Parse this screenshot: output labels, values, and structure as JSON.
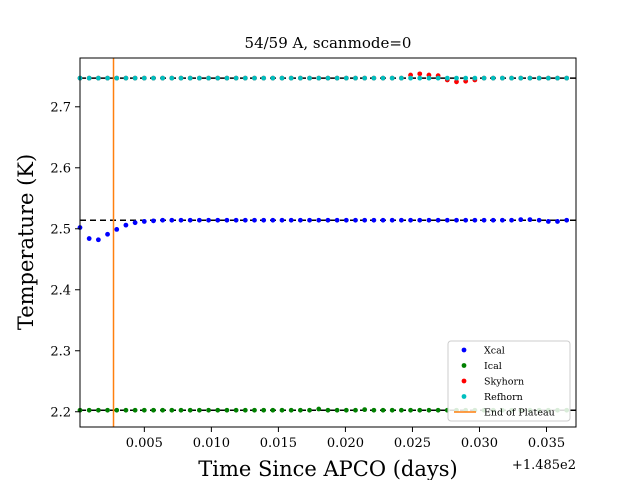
{
  "chart_data": {
    "type": "scatter",
    "title": "54/59 A, scanmode=0",
    "xlabel": "Time Since APCO (days)",
    "ylabel": "Temperature (K)",
    "x_offset_label": "+1.485e2",
    "xlim": [
      0.0002,
      0.0372
    ],
    "ylim": [
      2.175,
      2.78
    ],
    "xticks": [
      {
        "value": 0.005,
        "label": "0.005"
      },
      {
        "value": 0.01,
        "label": "0.010"
      },
      {
        "value": 0.015,
        "label": "0.015"
      },
      {
        "value": 0.02,
        "label": "0.020"
      },
      {
        "value": 0.025,
        "label": "0.025"
      },
      {
        "value": 0.03,
        "label": "0.030"
      },
      {
        "value": 0.035,
        "label": "0.035"
      }
    ],
    "yticks": [
      {
        "value": 2.2,
        "label": "2.2"
      },
      {
        "value": 2.3,
        "label": "2.3"
      },
      {
        "value": 2.4,
        "label": "2.4"
      },
      {
        "value": 2.5,
        "label": "2.5"
      },
      {
        "value": 2.6,
        "label": "2.6"
      },
      {
        "value": 2.7,
        "label": "2.7"
      }
    ],
    "x_start": 0.0002,
    "x_step": 0.000685,
    "n_points": 54,
    "series": [
      {
        "name": "Xcal",
        "color": "#0000ff",
        "base": 2.514,
        "deviations": {
          "0": -0.012,
          "1": -0.03,
          "2": -0.032,
          "3": -0.023,
          "4": -0.015,
          "5": -0.008,
          "6": -0.004,
          "7": -0.002,
          "8": -0.001,
          "48": 0.001,
          "49": 0.001,
          "50": 0.0,
          "51": -0.002,
          "52": -0.002
        }
      },
      {
        "name": "Ical",
        "color": "#008000",
        "base": 2.2025,
        "deviations": {
          "26": 0.002,
          "31": 0.001
        }
      },
      {
        "name": "Skyhorn",
        "color": "#ff0000",
        "base": 2.747,
        "deviations": {
          "36": 0.005,
          "37": 0.007,
          "38": 0.005,
          "39": 0.004,
          "40": -0.003,
          "41": -0.006,
          "42": -0.005,
          "43": -0.003
        }
      },
      {
        "name": "Refhorn",
        "color": "#00bfbf",
        "base": 2.747,
        "deviations": {}
      }
    ],
    "reference_lines": [
      {
        "y": 2.514,
        "style": "dashed",
        "color": "#000000"
      },
      {
        "y": 2.747,
        "style": "dashed",
        "color": "#000000"
      },
      {
        "y": 2.2025,
        "style": "dashed",
        "color": "#000000"
      }
    ],
    "end_of_plateau": {
      "name": "End of Plateau",
      "x": 0.0027,
      "color": "#ff7f0e"
    },
    "legend": {
      "position": "lower-right",
      "entries": [
        "Xcal",
        "Ical",
        "Skyhorn",
        "Refhorn",
        "End of Plateau"
      ]
    },
    "grid": false
  }
}
